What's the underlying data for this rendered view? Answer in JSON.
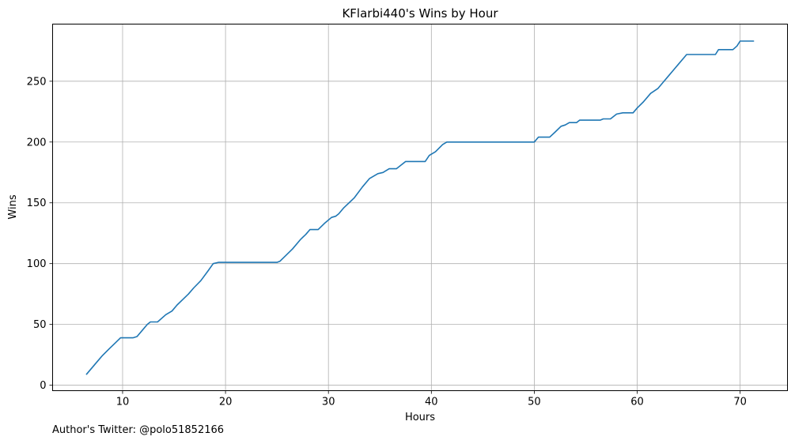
{
  "chart_data": {
    "type": "line",
    "title": "KFlarbi440's Wins by Hour",
    "xlabel": "Hours",
    "ylabel": "Wins",
    "xlim": [
      3.2,
      74.6
    ],
    "ylim": [
      -4.5,
      297
    ],
    "xticks": [
      10,
      20,
      30,
      40,
      50,
      60,
      70
    ],
    "yticks": [
      0,
      50,
      100,
      150,
      200,
      250
    ],
    "grid": true,
    "color": "#1f77b4",
    "series": [
      {
        "x": [
          6.5,
          7.5,
          8.0,
          8.7,
          9.2,
          9.8,
          11.0,
          11.4,
          11.9,
          12.4,
          12.7,
          13.4,
          14.2,
          14.8,
          15.3,
          16.4,
          16.9,
          17.6,
          18.3,
          18.8,
          19.3,
          25.0,
          25.3,
          26.5,
          27.3,
          27.8,
          28.2,
          29.0,
          29.6,
          30.3,
          30.7,
          31.0,
          31.5,
          32.5,
          33.3,
          34.0,
          34.8,
          35.3,
          35.9,
          36.6,
          37.5,
          39.4,
          39.8,
          40.4,
          41.1,
          41.5,
          50.0,
          50.4,
          51.5,
          52.0,
          52.6,
          53.0,
          53.4,
          54.1,
          54.4,
          56.4,
          56.7,
          57.4,
          58.0,
          58.6,
          59.6,
          60.0,
          60.6,
          61.3,
          62.0,
          62.5,
          63.0,
          63.5,
          64.0,
          64.6,
          64.8,
          67.6,
          67.9,
          69.3,
          69.7,
          70.0,
          71.3
        ],
        "y": [
          9,
          19,
          24,
          30,
          34,
          39,
          39,
          40,
          45,
          50,
          52,
          52,
          58,
          61,
          66,
          75,
          80,
          86,
          94,
          100,
          101,
          101,
          102,
          112,
          120,
          124,
          128,
          128,
          133,
          138,
          139,
          141,
          146,
          154,
          163,
          170,
          174,
          175,
          178,
          178,
          184,
          184,
          189,
          192,
          198,
          200,
          200,
          204,
          204,
          208,
          213,
          214,
          216,
          216,
          218,
          218,
          219,
          219,
          223,
          224,
          224,
          228,
          233,
          240,
          244,
          249,
          254,
          259,
          264,
          270,
          272,
          272,
          276,
          276,
          279,
          283,
          283
        ]
      }
    ]
  },
  "footer": "Author's Twitter: @polo51852166"
}
